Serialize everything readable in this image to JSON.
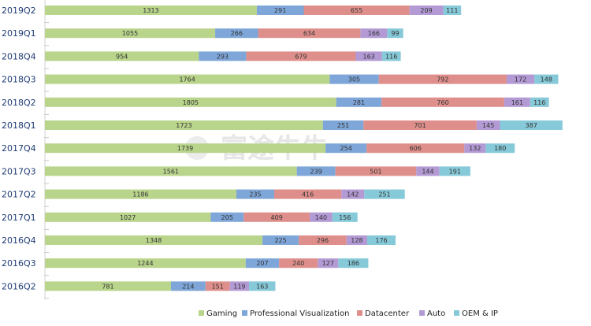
{
  "chart_data": {
    "type": "bar",
    "orientation": "horizontal",
    "stacked": true,
    "title": "",
    "xlabel": "",
    "ylabel": "",
    "grid": false,
    "legend_position": "bottom-right",
    "categories": [
      "2019Q2",
      "2019Q1",
      "2018Q4",
      "2018Q3",
      "2018Q2",
      "2018Q1",
      "2017Q4",
      "2017Q3",
      "2017Q2",
      "2017Q1",
      "2016Q4",
      "2016Q3",
      "2016Q2"
    ],
    "series": [
      {
        "name": "Gaming",
        "color": "#b9d48b",
        "values": [
          1313,
          1055,
          954,
          1764,
          1805,
          1723,
          1739,
          1561,
          1186,
          1027,
          1348,
          1244,
          781
        ]
      },
      {
        "name": "Professional Visualization",
        "color": "#7ea6d8",
        "values": [
          291,
          266,
          293,
          305,
          281,
          251,
          254,
          239,
          235,
          205,
          225,
          207,
          214
        ]
      },
      {
        "name": "Datacenter",
        "color": "#de8f8b",
        "values": [
          655,
          634,
          679,
          792,
          760,
          701,
          606,
          501,
          416,
          409,
          296,
          240,
          151
        ]
      },
      {
        "name": "Auto",
        "color": "#b39ad4",
        "values": [
          209,
          166,
          163,
          172,
          161,
          145,
          132,
          144,
          142,
          140,
          128,
          127,
          119
        ]
      },
      {
        "name": "OEM & IP",
        "color": "#86c9d8",
        "values": [
          111,
          99,
          116,
          148,
          116,
          387,
          180,
          191,
          251,
          156,
          176,
          186,
          163
        ]
      }
    ]
  }
}
